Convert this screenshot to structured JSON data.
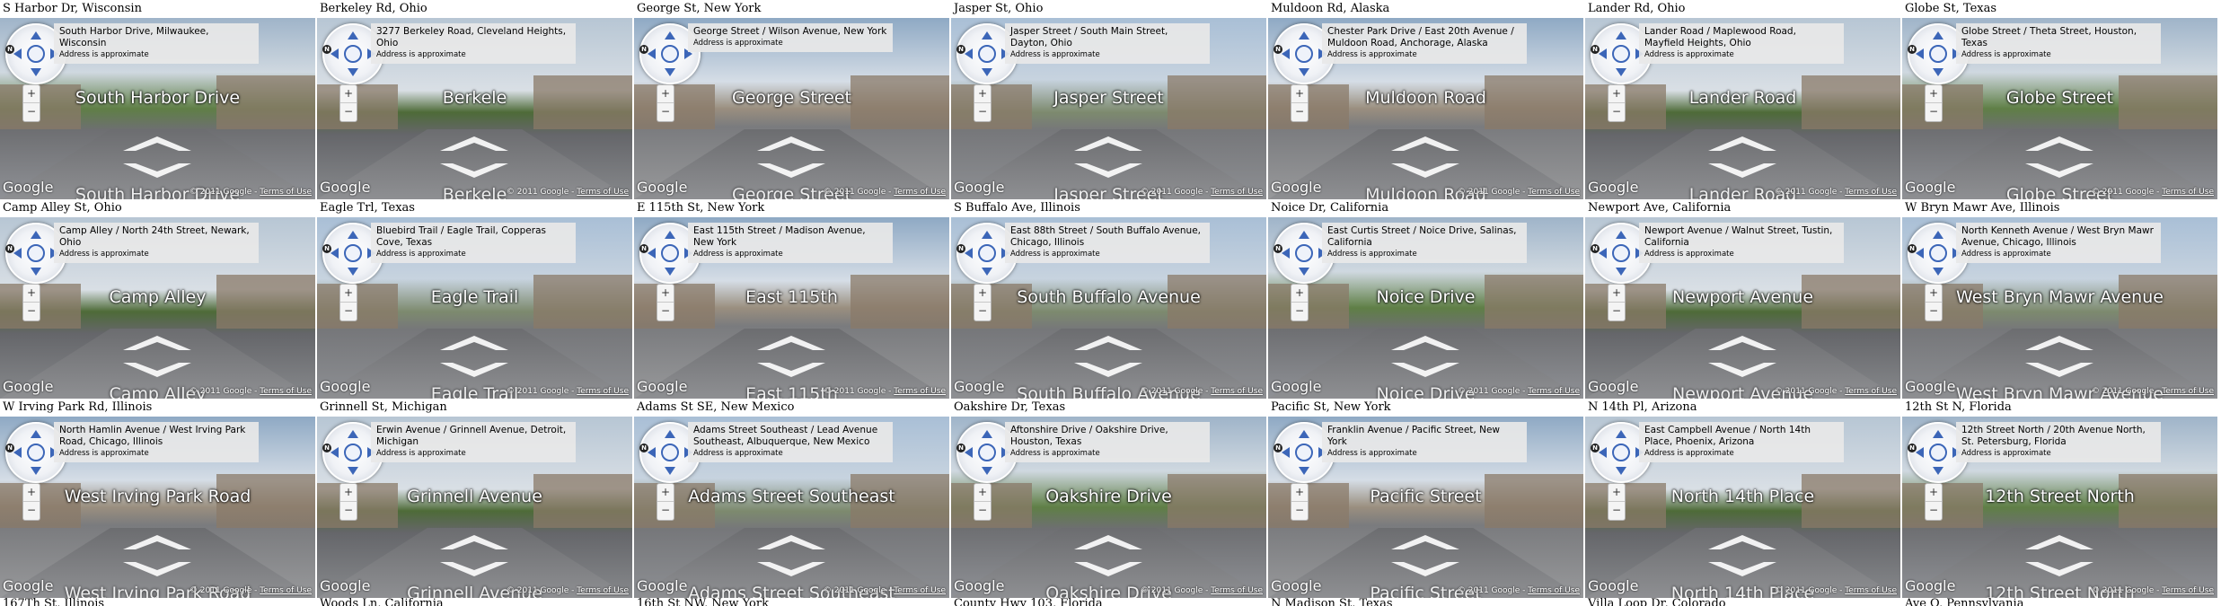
{
  "common": {
    "address_note": "Address is approximate",
    "google_logo": "Google",
    "copyright": "© 2011 Google",
    "terms_link": "Terms of Use",
    "separator": " - ",
    "zoom_in": "+",
    "zoom_out": "−"
  },
  "tiles": [
    {
      "caption": "S Harbor Dr, Wisconsin",
      "address": "South Harbor Drive, Milwaukee, Wisconsin",
      "street_label": "South Harbor Drive",
      "variant": "v1"
    },
    {
      "caption": "Berkeley Rd, Ohio",
      "address": "3277 Berkeley Road, Cleveland Heights, Ohio",
      "street_label": "Berkele",
      "variant": "v3"
    },
    {
      "caption": "George St, New York",
      "address": "George Street / Wilson Avenue, New York",
      "street_label": "George Street",
      "variant": "v2"
    },
    {
      "caption": "Jasper St, Ohio",
      "address": "Jasper Street / South Main Street, Dayton, Ohio",
      "street_label": "Jasper Street",
      "variant": "v0"
    },
    {
      "caption": "Muldoon Rd, Alaska",
      "address": "Chester Park Drive / East 20th Avenue / Muldoon Road, Anchorage, Alaska",
      "street_label": "Muldoon Road",
      "variant": "v2"
    },
    {
      "caption": "Lander Rd, Ohio",
      "address": "Lander Road / Maplewood Road, Mayfield Heights, Ohio",
      "street_label": "Lander Road",
      "variant": "v3"
    },
    {
      "caption": "Globe St, Texas",
      "address": "Globe Street / Theta Street, Houston, Texas",
      "street_label": "Globe Street",
      "variant": "v1"
    },
    {
      "caption": "Camp Alley St, Ohio",
      "address": "Camp Alley / North 24th Street, Newark, Ohio",
      "street_label": "Camp Alley",
      "variant": "v3"
    },
    {
      "caption": "Eagle Trl, Texas",
      "address": "Bluebird Trail / Eagle Trail, Copperas Cove, Texas",
      "street_label": "Eagle Trail",
      "variant": "v0"
    },
    {
      "caption": "E 115th St, New York",
      "address": "East 115th Street / Madison Avenue, New York",
      "street_label": "East 115th",
      "variant": "v2"
    },
    {
      "caption": "S Buffalo Ave, Illinois",
      "address": "East 88th Street / South Buffalo Avenue, Chicago, Illinois",
      "street_label": "South Buffalo Avenue",
      "variant": "v0"
    },
    {
      "caption": "Noice Dr, California",
      "address": "East Curtis Street / Noice Drive, Salinas, California",
      "street_label": "Noice Drive",
      "variant": "v1"
    },
    {
      "caption": "Newport Ave, California",
      "address": "Newport Avenue / Walnut Street, Tustin, California",
      "street_label": "Newport Avenue",
      "variant": "v3"
    },
    {
      "caption": "W Bryn Mawr Ave, Illinois",
      "address": "North Kenneth Avenue / West Bryn Mawr Avenue, Chicago, Illinois",
      "street_label": "West Bryn Mawr Avenue",
      "variant": "v0"
    },
    {
      "caption": "W Irving Park Rd, Illinois",
      "address": "North Hamlin Avenue / West Irving Park Road, Chicago, Illinois",
      "street_label": "West Irving Park Road",
      "variant": "v2"
    },
    {
      "caption": "Grinnell St, Michigan",
      "address": "Erwin Avenue / Grinnell Avenue, Detroit, Michigan",
      "street_label": "Grinnell Avenue",
      "variant": "v3"
    },
    {
      "caption": "Adams St SE, New Mexico",
      "address": "Adams Street Southeast / Lead Avenue Southeast, Albuquerque, New Mexico",
      "street_label": "Adams Street Southeast",
      "variant": "v0"
    },
    {
      "caption": "Oakshire Dr, Texas",
      "address": "Aftonshire Drive / Oakshire Drive, Houston, Texas",
      "street_label": "Oakshire Drive",
      "variant": "v1"
    },
    {
      "caption": "Pacific St, New York",
      "address": "Franklin Avenue / Pacific Street, New York",
      "street_label": "Pacific Street",
      "variant": "v2"
    },
    {
      "caption": "N 14th Pl, Arizona",
      "address": "East Campbell Avenue / North 14th Place, Phoenix, Arizona",
      "street_label": "North 14th Place",
      "variant": "v3"
    },
    {
      "caption": "12th St N, Florida",
      "address": "12th Street North / 20th Avenue North, St. Petersburg, Florida",
      "street_label": "12th Street North",
      "variant": "v1"
    }
  ],
  "bottom_row": [
    "167Th St, Illinois",
    "Woods Ln, California",
    "16th St NW, New York",
    "County Hwy 103, Florida",
    "N Madison St, Texas",
    "Villa Loop Dr, Colorado",
    "Ave Q, Pennsylvania"
  ]
}
